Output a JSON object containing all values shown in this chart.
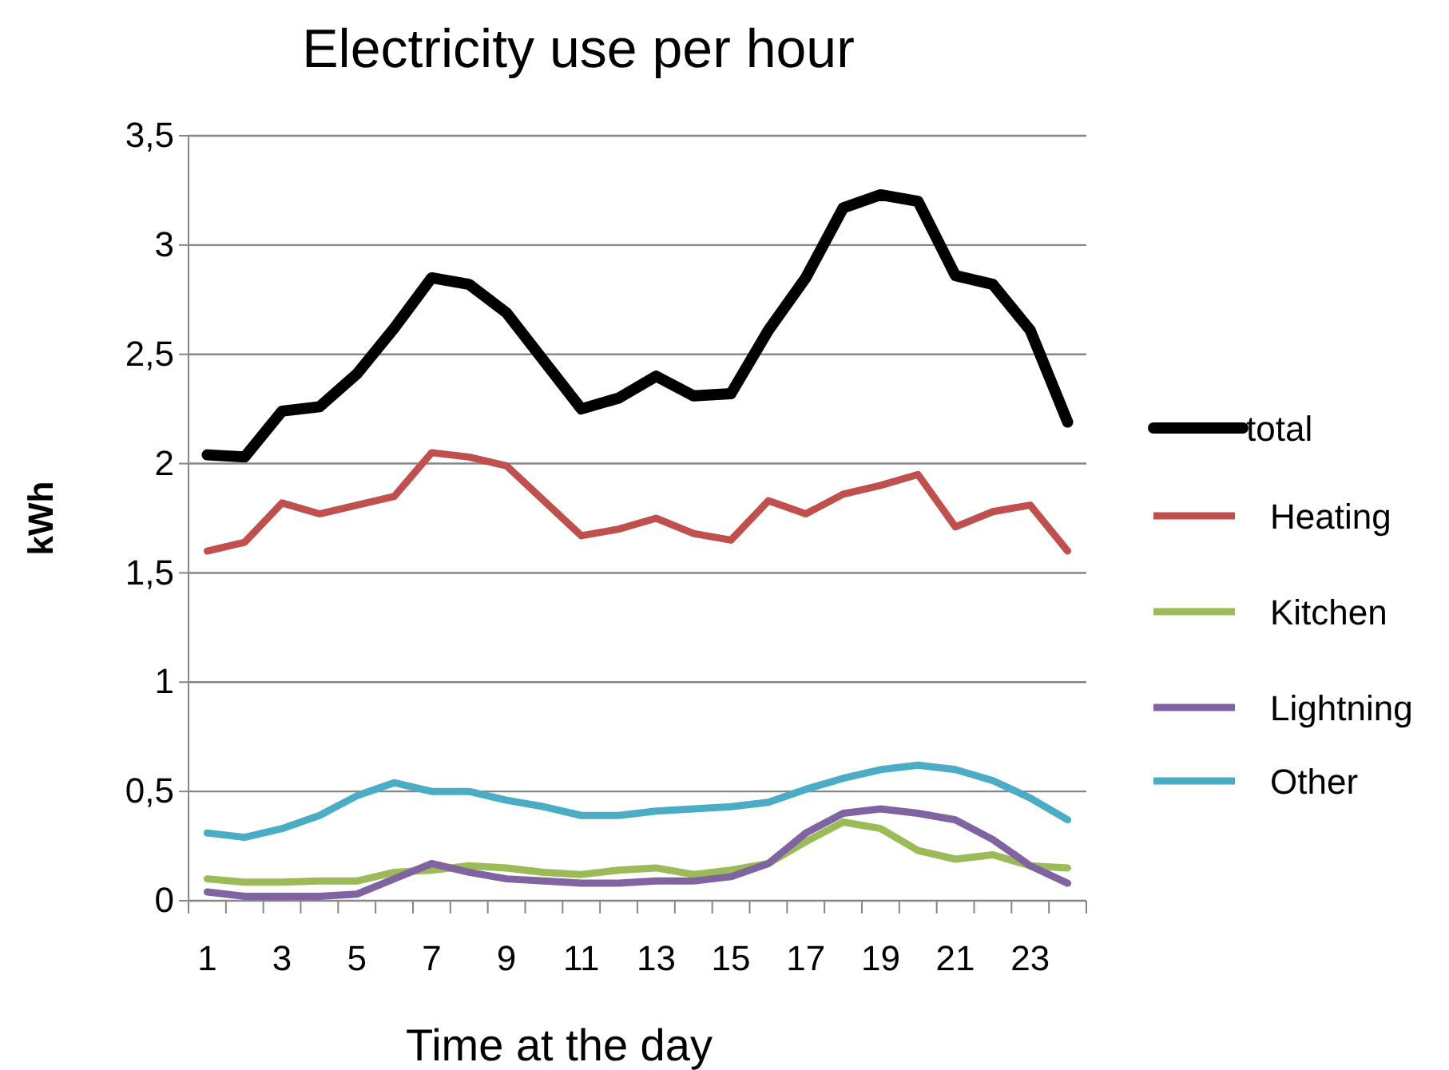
{
  "chart_data": {
    "type": "line",
    "title": "Electricity use per hour",
    "xlabel": "Time at the day",
    "ylabel": "kWh",
    "x": [
      1,
      2,
      3,
      4,
      5,
      6,
      7,
      8,
      9,
      10,
      11,
      12,
      13,
      14,
      15,
      16,
      17,
      18,
      19,
      20,
      21,
      22,
      23,
      24
    ],
    "xlim": [
      0.5,
      24.5
    ],
    "xticks": [
      1,
      3,
      5,
      7,
      9,
      11,
      13,
      15,
      17,
      19,
      21,
      23,
      {
        "value": 0.5,
        "label": null
      },
      {
        "value": 1.5,
        "label": null
      },
      {
        "value": 2.5,
        "label": null
      },
      {
        "value": 3.5,
        "label": null
      },
      {
        "value": 4.5,
        "label": null
      },
      {
        "value": 5.5,
        "label": null
      },
      {
        "value": 6.5,
        "label": null
      },
      {
        "value": 7.5,
        "label": null
      },
      {
        "value": 8.5,
        "label": null
      },
      {
        "value": 9.5,
        "label": null
      },
      {
        "value": 10.5,
        "label": null
      },
      {
        "value": 11.5,
        "label": null
      },
      {
        "value": 12.5,
        "label": null
      },
      {
        "value": 13.5,
        "label": null
      },
      {
        "value": 14.5,
        "label": null
      },
      {
        "value": 15.5,
        "label": null
      },
      {
        "value": 16.5,
        "label": null
      },
      {
        "value": 17.5,
        "label": null
      },
      {
        "value": 18.5,
        "label": null
      },
      {
        "value": 19.5,
        "label": null
      },
      {
        "value": 20.5,
        "label": null
      },
      {
        "value": 21.5,
        "label": null
      },
      {
        "value": 22.5,
        "label": null
      },
      {
        "value": 23.5,
        "label": null
      },
      {
        "value": 24.5,
        "label": null
      }
    ],
    "ylim": [
      0,
      3.5
    ],
    "yticks": [
      0,
      {
        "value": 0.5,
        "label": "0,5"
      },
      1,
      {
        "value": 1.5,
        "label": "1,5"
      },
      2,
      {
        "value": 2.5,
        "label": "2,5"
      },
      3,
      {
        "value": 3.5,
        "label": "3,5"
      }
    ],
    "grid": "y",
    "legend": "right",
    "marker": "none",
    "line_style": "solid",
    "series": [
      {
        "name": "total",
        "color": "#000000",
        "values": [
          2.04,
          2.03,
          2.24,
          2.26,
          2.41,
          2.62,
          2.85,
          2.82,
          2.69,
          2.47,
          2.25,
          2.3,
          2.4,
          2.31,
          2.32,
          2.61,
          2.85,
          3.17,
          3.23,
          3.2,
          2.86,
          2.82,
          2.61,
          2.19
        ]
      },
      {
        "name": "Heating",
        "color": "#c0504d",
        "values": [
          1.6,
          1.64,
          1.82,
          1.77,
          1.81,
          1.85,
          2.05,
          2.03,
          1.99,
          1.83,
          1.67,
          1.7,
          1.75,
          1.68,
          1.65,
          1.83,
          1.77,
          1.86,
          1.9,
          1.95,
          1.71,
          1.78,
          1.81,
          1.6
        ]
      },
      {
        "name": "Kitchen",
        "color": "#9bbb59",
        "values": [
          0.1,
          0.085,
          0.085,
          0.09,
          0.09,
          0.13,
          0.14,
          0.16,
          0.15,
          0.13,
          0.12,
          0.14,
          0.15,
          0.12,
          0.14,
          0.17,
          0.27,
          0.36,
          0.33,
          0.23,
          0.19,
          0.21,
          0.16,
          0.15
        ]
      },
      {
        "name": "Lightning",
        "color": "#8064a2",
        "values": [
          0.04,
          0.02,
          0.02,
          0.02,
          0.03,
          0.1,
          0.17,
          0.13,
          0.1,
          0.09,
          0.08,
          0.08,
          0.09,
          0.09,
          0.11,
          0.17,
          0.31,
          0.4,
          0.42,
          0.4,
          0.37,
          0.28,
          0.16,
          0.08
        ]
      },
      {
        "name": "Other",
        "color": "#4bacc6",
        "values": [
          0.31,
          0.29,
          0.33,
          0.39,
          0.48,
          0.54,
          0.5,
          0.5,
          0.46,
          0.43,
          0.39,
          0.39,
          0.41,
          0.42,
          0.43,
          0.45,
          0.51,
          0.56,
          0.6,
          0.62,
          0.6,
          0.55,
          0.47,
          0.37
        ]
      }
    ]
  }
}
